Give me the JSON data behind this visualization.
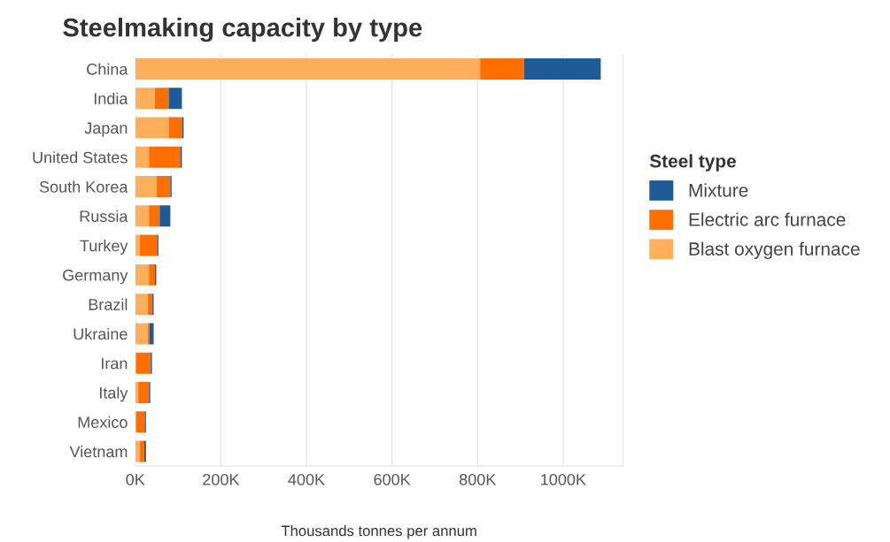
{
  "chart_data": {
    "type": "bar",
    "orientation": "horizontal",
    "stacked": true,
    "title": "Steelmaking capacity by type",
    "xlabel": "Thousands tonnes per annum",
    "legend_title": "Steel type",
    "legend": "right",
    "categories": [
      "China",
      "India",
      "Japan",
      "United States",
      "South Korea",
      "Russia",
      "Turkey",
      "Germany",
      "Brazil",
      "Ukraine",
      "Iran",
      "Italy",
      "Mexico",
      "Vietnam"
    ],
    "series": [
      {
        "name": "Blast oxygen furnace",
        "color": "#ffae5c",
        "values": [
          806,
          46,
          78,
          32,
          50,
          32,
          11,
          32,
          29,
          29,
          2,
          7,
          2,
          11
        ]
      },
      {
        "name": "Electric arc furnace",
        "color": "#ff6e00",
        "values": [
          103,
          32,
          32,
          74,
          32,
          25,
          40,
          14,
          11,
          4,
          34,
          25,
          20,
          10
        ]
      },
      {
        "name": "Mixture",
        "color": "#1f5a99",
        "values": [
          179,
          31,
          3,
          3,
          3,
          25,
          3,
          3,
          3,
          10,
          3,
          3,
          3,
          4
        ]
      }
    ],
    "xlim": [
      0,
      1140
    ],
    "xticks": [
      {
        "value": 0,
        "label": "0K"
      },
      {
        "value": 200,
        "label": "200K"
      },
      {
        "value": 400,
        "label": "400K"
      },
      {
        "value": 600,
        "label": "600K"
      },
      {
        "value": 800,
        "label": "800K"
      },
      {
        "value": 1000,
        "label": "1000K"
      }
    ],
    "grid": "x"
  }
}
